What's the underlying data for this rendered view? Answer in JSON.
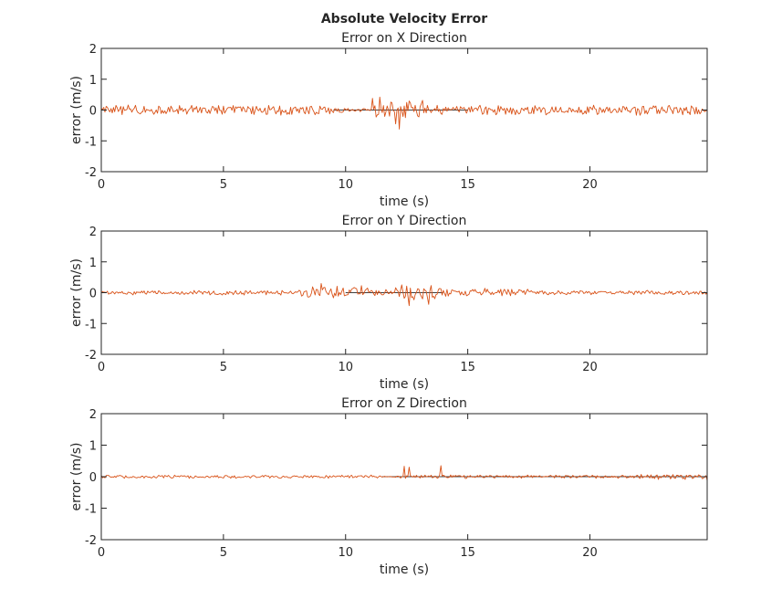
{
  "figure": {
    "title": "Absolute Velocity Error"
  },
  "colors": {
    "error_trace": "#d95319",
    "zero_line": "#404040",
    "axes": "#262626",
    "background": "#ffffff"
  },
  "chart_data": [
    {
      "type": "line",
      "title": "Error on X Direction",
      "xlabel": "time (s)",
      "ylabel": "error (m/s)",
      "xlim": [
        0,
        24.8
      ],
      "ylim": [
        -2,
        2
      ],
      "xticks": [
        0,
        5,
        10,
        15,
        20
      ],
      "yticks": [
        -2,
        -1,
        0,
        1,
        2
      ],
      "grid": false,
      "sample_step_s": 0.05,
      "series": [
        {
          "segments": [
            {
              "x": [
                0,
                10
              ],
              "amplitude": 0.13
            },
            {
              "x": [
                10,
                11.2
              ],
              "amplitude": 0.05
            },
            {
              "x": [
                11.2,
                13.2
              ],
              "amplitude": 0.28
            },
            {
              "x": [
                13.2,
                24.8
              ],
              "amplitude": 0.13
            }
          ],
          "extremes": [
            {
              "x": 11.1,
              "y": 0.38
            },
            {
              "x": 11.4,
              "y": 0.42
            },
            {
              "x": 12.2,
              "y": -0.62
            },
            {
              "x": 12.05,
              "y": -0.45
            }
          ]
        }
      ],
      "reference": {
        "y": 0,
        "x": [
          9.5,
          15
        ]
      }
    },
    {
      "type": "line",
      "title": "Error on Y Direction",
      "xlabel": "time (s)",
      "ylabel": "error (m/s)",
      "xlim": [
        0,
        24.8
      ],
      "ylim": [
        -2,
        2
      ],
      "xticks": [
        0,
        5,
        10,
        15,
        20
      ],
      "yticks": [
        -2,
        -1,
        0,
        1,
        2
      ],
      "grid": false,
      "sample_step_s": 0.05,
      "series": [
        {
          "segments": [
            {
              "x": [
                0,
                8
              ],
              "amplitude": 0.06
            },
            {
              "x": [
                8,
                11
              ],
              "amplitude": 0.18
            },
            {
              "x": [
                11,
                12
              ],
              "amplitude": 0.08
            },
            {
              "x": [
                12,
                14
              ],
              "amplitude": 0.2
            },
            {
              "x": [
                14,
                17.5
              ],
              "amplitude": 0.11
            },
            {
              "x": [
                17.5,
                24.8
              ],
              "amplitude": 0.06
            }
          ],
          "extremes": [
            {
              "x": 9.0,
              "y": 0.3
            },
            {
              "x": 12.6,
              "y": -0.42
            },
            {
              "x": 13.4,
              "y": -0.38
            }
          ]
        }
      ],
      "reference": {
        "y": 0,
        "x": [
          10,
          14
        ]
      }
    },
    {
      "type": "line",
      "title": "Error on Z Direction",
      "xlabel": "time (s)",
      "ylabel": "error (m/s)",
      "xlim": [
        0,
        24.8
      ],
      "ylim": [
        -2,
        2
      ],
      "xticks": [
        0,
        5,
        10,
        15,
        20
      ],
      "yticks": [
        -2,
        -1,
        0,
        1,
        2
      ],
      "grid": false,
      "sample_step_s": 0.05,
      "series": [
        {
          "segments": [
            {
              "x": [
                0,
                11.5
              ],
              "amplitude": 0.04
            },
            {
              "x": [
                11.5,
                12.2
              ],
              "amplitude": 0.02
            },
            {
              "x": [
                12.2,
                15
              ],
              "amplitude": 0.05
            },
            {
              "x": [
                15,
                22
              ],
              "amplitude": 0.04
            },
            {
              "x": [
                22,
                24.8
              ],
              "amplitude": 0.07
            }
          ],
          "extremes": [
            {
              "x": 12.4,
              "y": 0.33
            },
            {
              "x": 12.6,
              "y": 0.3
            },
            {
              "x": 13.9,
              "y": 0.35
            },
            {
              "x": 24.8,
              "y": -0.12
            }
          ]
        }
      ],
      "reference": {
        "y": 0,
        "x": [
          11.5,
          24.8
        ]
      }
    }
  ]
}
